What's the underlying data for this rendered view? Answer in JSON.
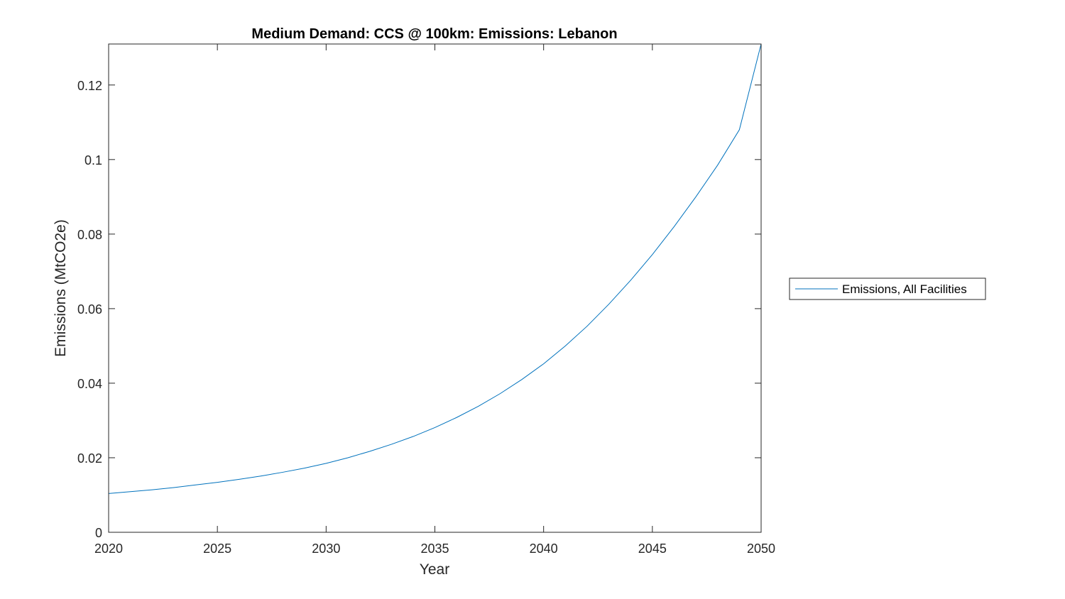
{
  "chart_data": {
    "type": "line",
    "title": "Medium Demand: CCS @ 100km: Emissions: Lebanon",
    "xlabel": "Year",
    "ylabel": "Emissions (MtCO2e)",
    "xlim": [
      2020,
      2050
    ],
    "ylim": [
      0,
      0.131
    ],
    "xticks": [
      2020,
      2025,
      2030,
      2035,
      2040,
      2045,
      2050
    ],
    "yticks": [
      0,
      0.02,
      0.04,
      0.06,
      0.08,
      0.1,
      0.12
    ],
    "xtick_labels": [
      "2020",
      "2025",
      "2030",
      "2035",
      "2040",
      "2045",
      "2050"
    ],
    "ytick_labels": [
      "0",
      "0.02",
      "0.04",
      "0.06",
      "0.08",
      "0.1",
      "0.12"
    ],
    "grid": false,
    "legend_position": "outside-right",
    "series": [
      {
        "name": "Emissions, All Facilities",
        "color": "#0072BD",
        "x": [
          2020,
          2021,
          2022,
          2023,
          2024,
          2025,
          2026,
          2027,
          2028,
          2029,
          2030,
          2031,
          2032,
          2033,
          2034,
          2035,
          2036,
          2037,
          2038,
          2039,
          2040,
          2041,
          2042,
          2043,
          2044,
          2045,
          2046,
          2047,
          2048,
          2049,
          2050
        ],
        "y": [
          0.0104,
          0.0109,
          0.0114,
          0.012,
          0.0127,
          0.0134,
          0.0142,
          0.0151,
          0.0161,
          0.0172,
          0.0185,
          0.02,
          0.0217,
          0.0236,
          0.0257,
          0.0281,
          0.0308,
          0.0338,
          0.0372,
          0.041,
          0.0452,
          0.05,
          0.0553,
          0.0612,
          0.0676,
          0.0745,
          0.082,
          0.09,
          0.0985,
          0.108,
          0.131
        ]
      }
    ]
  }
}
